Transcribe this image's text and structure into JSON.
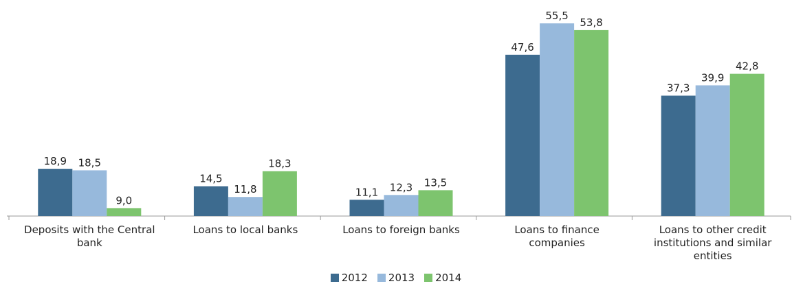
{
  "chart_data": {
    "type": "bar",
    "categories": [
      "Deposits with the Central bank",
      "Loans to local banks",
      "Loans to foreign banks",
      "Loans to finance companies",
      "Loans to other credit institutions and similar entities"
    ],
    "series": [
      {
        "name": "2012",
        "color": "#3d6b8f",
        "values": [
          18.9,
          14.5,
          11.1,
          47.6,
          37.3
        ],
        "value_labels": [
          "18,9",
          "14,5",
          "11,1",
          "47,6",
          "37,3"
        ]
      },
      {
        "name": "2013",
        "color": "#97b9dc",
        "values": [
          18.5,
          11.8,
          12.3,
          55.5,
          39.9
        ],
        "value_labels": [
          "18,5",
          "11,8",
          "12,3",
          "55,5",
          "39,9"
        ]
      },
      {
        "name": "2014",
        "color": "#7dc46e",
        "values": [
          9.0,
          18.3,
          13.5,
          53.8,
          42.8
        ],
        "value_labels": [
          "9,0",
          "18,3",
          "13,5",
          "53,8",
          "42,8"
        ]
      }
    ],
    "ylim": [
      7,
      60
    ],
    "legend": "bottom"
  }
}
